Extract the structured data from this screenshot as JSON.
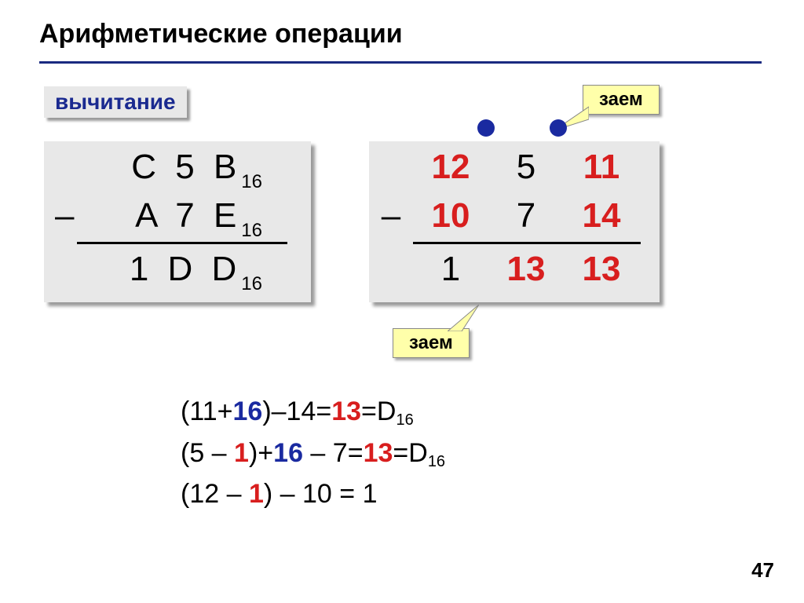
{
  "title": "Арифметические операции",
  "subtitle": "вычитание",
  "borrow_label": "заем",
  "page_number": "47",
  "colors": {
    "accent_red": "#d81e1e",
    "accent_blue": "#1a2aa0",
    "black": "#000000",
    "panel_bg": "#e8e8e8",
    "callout_bg": "#ffffaa"
  },
  "hex_panel": {
    "minuend": "C 5 B",
    "subtrahend": "A 7 E",
    "result": "1 D D",
    "base": "16",
    "minus": "–"
  },
  "dec_panel": {
    "minus": "–",
    "row1": [
      {
        "v": "12",
        "c": "#d81e1e"
      },
      {
        "v": "5",
        "c": "#000000"
      },
      {
        "v": "11",
        "c": "#d81e1e"
      }
    ],
    "row2": [
      {
        "v": "10",
        "c": "#d81e1e"
      },
      {
        "v": "7",
        "c": "#000000"
      },
      {
        "v": "14",
        "c": "#d81e1e"
      }
    ],
    "row3": [
      {
        "v": "1",
        "c": "#000000"
      },
      {
        "v": "13",
        "c": "#d81e1e"
      },
      {
        "v": "13",
        "c": "#d81e1e"
      }
    ]
  },
  "equations": {
    "line1": {
      "parts": [
        {
          "t": "(11+",
          "c": "#000000",
          "b": false
        },
        {
          "t": "16",
          "c": "#1a2aa0",
          "b": true
        },
        {
          "t": ")–14=",
          "c": "#000000",
          "b": false
        },
        {
          "t": "13",
          "c": "#d81e1e",
          "b": true
        },
        {
          "t": "=D",
          "c": "#000000",
          "b": false
        }
      ],
      "sub": "16"
    },
    "line2": {
      "parts": [
        {
          "t": "(5 – ",
          "c": "#000000",
          "b": false
        },
        {
          "t": "1",
          "c": "#d81e1e",
          "b": true
        },
        {
          "t": ")+",
          "c": "#000000",
          "b": false
        },
        {
          "t": "16",
          "c": "#1a2aa0",
          "b": true
        },
        {
          "t": " – 7=",
          "c": "#000000",
          "b": false
        },
        {
          "t": "13",
          "c": "#d81e1e",
          "b": true
        },
        {
          "t": "=D",
          "c": "#000000",
          "b": false
        }
      ],
      "sub": "16"
    },
    "line3": {
      "parts": [
        {
          "t": "(12 – ",
          "c": "#000000",
          "b": false
        },
        {
          "t": "1",
          "c": "#d81e1e",
          "b": true
        },
        {
          "t": ") – 10 = 1",
          "c": "#000000",
          "b": false
        }
      ],
      "sub": ""
    }
  }
}
